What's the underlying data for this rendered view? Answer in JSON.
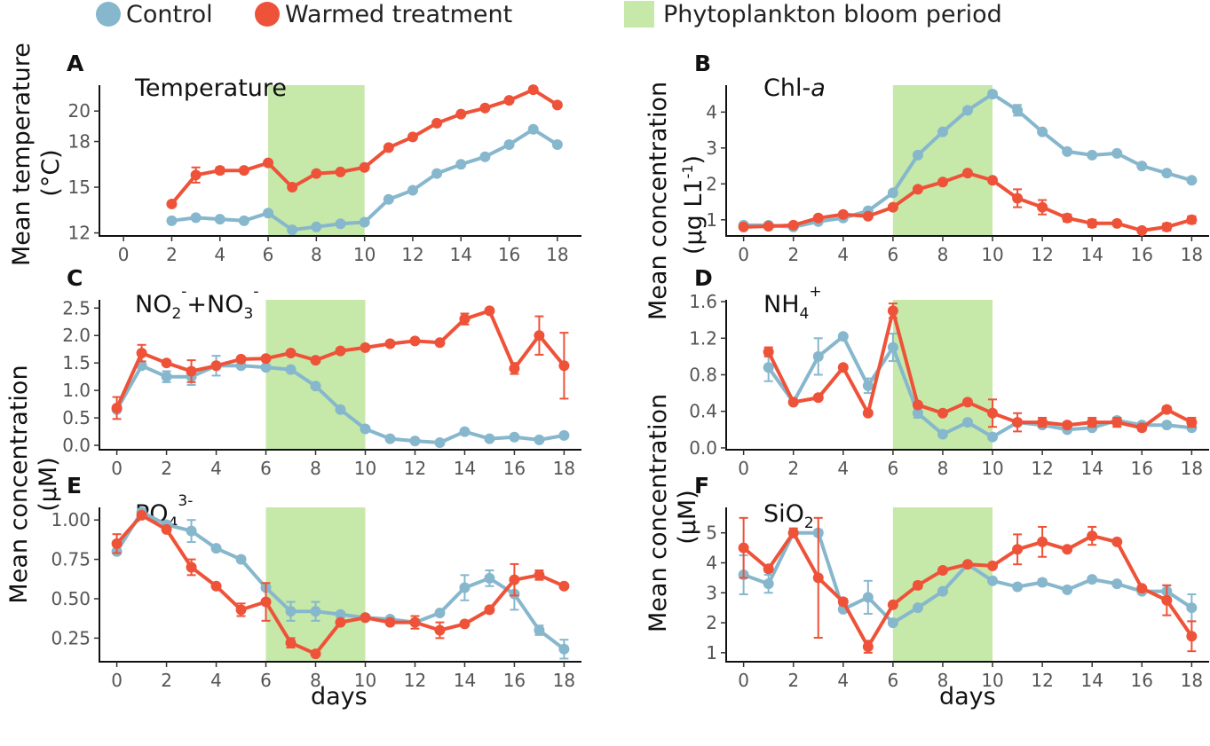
{
  "legend": {
    "control_label": "Control",
    "warmed_label": "Warmed treatment",
    "bloom_label": "Phytoplankton bloom period"
  },
  "colors": {
    "control": "#86b7cd",
    "warmed": "#ee5238",
    "bloom": "#c6e8a9"
  },
  "y_labels": {
    "temperature_line1": "Mean temperature",
    "temperature_line2": "(°C)",
    "left_conc_line1": "Mean concentration",
    "left_conc_line2": "(µM)",
    "right_chl_line1": "Mean concentration",
    "right_chl_line2": "(µg L1",
    "right_chl_sup": "-1",
    "right_chl_close": ")",
    "right_conc_line1": "Mean concentration",
    "right_conc_line2": "(µM)"
  },
  "x_label": "days",
  "chart_data": [
    {
      "id": "A",
      "letter": "A",
      "title": "Temperature",
      "type": "line",
      "bloom": [
        6,
        10
      ],
      "xlim": [
        -1,
        19
      ],
      "ylim": [
        11.8,
        21.7
      ],
      "xticks": [
        0,
        2,
        4,
        6,
        8,
        10,
        12,
        14,
        16,
        18
      ],
      "yticks": [
        12,
        15,
        18,
        20
      ],
      "series": [
        {
          "name": "Control",
          "x": [
            2,
            3,
            4,
            5,
            6,
            7,
            8,
            9,
            10,
            11,
            12,
            13,
            14,
            15,
            16,
            17,
            18
          ],
          "values": [
            12.8,
            13.0,
            12.9,
            12.8,
            13.3,
            12.2,
            12.4,
            12.6,
            12.7,
            14.2,
            14.8,
            15.9,
            16.5,
            17.0,
            17.8,
            18.8,
            17.8
          ],
          "errors": [
            0,
            0,
            0,
            0,
            0,
            0,
            0,
            0,
            0,
            0,
            0,
            0,
            0,
            0,
            0,
            0,
            0
          ]
        },
        {
          "name": "Warmed treatment",
          "x": [
            2,
            3,
            4,
            5,
            6,
            7,
            8,
            9,
            10,
            11,
            12,
            13,
            14,
            15,
            16,
            17,
            18
          ],
          "values": [
            13.9,
            15.8,
            16.1,
            16.1,
            16.6,
            15.0,
            15.9,
            16.0,
            16.3,
            17.6,
            18.3,
            19.2,
            19.8,
            20.2,
            20.7,
            21.4,
            20.4
          ],
          "errors": [
            0,
            0.5,
            0.2,
            0,
            0,
            0,
            0,
            0,
            0,
            0,
            0,
            0,
            0,
            0,
            0,
            0,
            0
          ]
        }
      ]
    },
    {
      "id": "B",
      "letter": "B",
      "title": "Chl-",
      "title_italic": "a",
      "type": "line",
      "bloom": [
        6,
        10
      ],
      "xlim": [
        -0.7,
        18.7
      ],
      "ylim": [
        0.55,
        4.75
      ],
      "xticks": [
        0,
        2,
        4,
        6,
        8,
        10,
        12,
        14,
        16,
        18
      ],
      "yticks": [
        1,
        2,
        3,
        4
      ],
      "series": [
        {
          "name": "Control",
          "x": [
            0,
            1,
            2,
            3,
            4,
            5,
            6,
            7,
            8,
            9,
            10,
            11,
            12,
            13,
            14,
            15,
            16,
            17,
            18
          ],
          "values": [
            0.85,
            0.85,
            0.8,
            0.95,
            1.05,
            1.25,
            1.75,
            2.8,
            3.45,
            4.05,
            4.5,
            4.05,
            3.45,
            2.9,
            2.8,
            2.85,
            2.5,
            2.3,
            2.1
          ],
          "errors": [
            0,
            0,
            0,
            0,
            0,
            0,
            0,
            0,
            0,
            0,
            0.08,
            0.15,
            0,
            0,
            0,
            0,
            0,
            0,
            0
          ]
        },
        {
          "name": "Warmed treatment",
          "x": [
            0,
            1,
            2,
            3,
            4,
            5,
            6,
            7,
            8,
            9,
            10,
            11,
            12,
            13,
            14,
            15,
            16,
            17,
            18
          ],
          "values": [
            0.8,
            0.82,
            0.85,
            1.05,
            1.15,
            1.1,
            1.35,
            1.85,
            2.05,
            2.3,
            2.1,
            1.6,
            1.35,
            1.05,
            0.9,
            0.9,
            0.7,
            0.8,
            1.0
          ],
          "errors": [
            0,
            0,
            0,
            0,
            0,
            0,
            0,
            0,
            0,
            0,
            0,
            0.25,
            0.2,
            0.1,
            0.1,
            0,
            0.05,
            0.1,
            0.1
          ]
        }
      ]
    },
    {
      "id": "C",
      "letter": "C",
      "title": "NO",
      "title_parts": [
        [
          "NO",
          ""
        ],
        [
          "2",
          "sub"
        ],
        [
          "-",
          "sup"
        ],
        [
          "+NO",
          ""
        ],
        [
          "3",
          "sub"
        ],
        [
          "-",
          "sup"
        ]
      ],
      "type": "line",
      "bloom": [
        6,
        10
      ],
      "xlim": [
        -0.7,
        18.7
      ],
      "ylim": [
        -0.08,
        2.65
      ],
      "xticks": [
        0,
        2,
        4,
        6,
        8,
        10,
        12,
        14,
        16,
        18
      ],
      "yticks": [
        0.0,
        0.5,
        1.0,
        1.5,
        2.0,
        2.5
      ],
      "series": [
        {
          "name": "Control",
          "x": [
            0,
            1,
            2,
            3,
            4,
            5,
            6,
            7,
            8,
            9,
            10,
            11,
            12,
            13,
            14,
            15,
            16,
            17,
            18
          ],
          "values": [
            0.65,
            1.45,
            1.25,
            1.25,
            1.45,
            1.45,
            1.42,
            1.38,
            1.08,
            0.65,
            0.3,
            0.12,
            0.08,
            0.05,
            0.25,
            0.12,
            0.15,
            0.1,
            0.18
          ],
          "errors": [
            0,
            0,
            0.1,
            0.15,
            0.18,
            0,
            0,
            0,
            0,
            0,
            0,
            0,
            0,
            0,
            0,
            0,
            0,
            0,
            0
          ]
        },
        {
          "name": "Warmed treatment",
          "x": [
            0,
            1,
            2,
            3,
            4,
            5,
            6,
            7,
            8,
            9,
            10,
            11,
            12,
            13,
            14,
            15,
            16,
            17,
            18
          ],
          "values": [
            0.68,
            1.68,
            1.5,
            1.35,
            1.45,
            1.57,
            1.58,
            1.68,
            1.55,
            1.72,
            1.78,
            1.85,
            1.9,
            1.87,
            2.3,
            2.45,
            1.4,
            2.0,
            1.45
          ],
          "errors": [
            0.2,
            0.15,
            0,
            0.2,
            0,
            0,
            0,
            0,
            0,
            0,
            0,
            0,
            0,
            0,
            0.1,
            0,
            0.1,
            0.35,
            0.6
          ]
        }
      ]
    },
    {
      "id": "D",
      "letter": "D",
      "title": "NH",
      "title_parts": [
        [
          "NH",
          ""
        ],
        [
          "4",
          "sub"
        ],
        [
          "+",
          "sup"
        ]
      ],
      "type": "line",
      "bloom": [
        6,
        10
      ],
      "xlim": [
        -0.7,
        18.7
      ],
      "ylim": [
        -0.02,
        1.62
      ],
      "xticks": [
        0,
        2,
        4,
        6,
        8,
        10,
        12,
        14,
        16,
        18
      ],
      "yticks": [
        0.0,
        0.4,
        0.8,
        1.2,
        1.6
      ],
      "series": [
        {
          "name": "Control",
          "x": [
            1,
            2,
            3,
            4,
            5,
            6,
            7,
            8,
            9,
            10,
            11,
            12,
            13,
            14,
            15,
            16,
            17,
            18
          ],
          "values": [
            0.88,
            0.5,
            1.0,
            1.22,
            0.68,
            1.1,
            0.38,
            0.15,
            0.28,
            0.12,
            0.28,
            0.25,
            0.2,
            0.22,
            0.3,
            0.25,
            0.25,
            0.22
          ],
          "errors": [
            0.15,
            0,
            0.2,
            0,
            0.08,
            0.15,
            0.05,
            0,
            0,
            0,
            0,
            0,
            0,
            0,
            0,
            0,
            0,
            0
          ]
        },
        {
          "name": "Warmed treatment",
          "x": [
            1,
            2,
            3,
            4,
            5,
            6,
            7,
            8,
            9,
            10,
            11,
            12,
            13,
            14,
            15,
            16,
            17,
            18
          ],
          "values": [
            1.05,
            0.5,
            0.55,
            0.88,
            0.38,
            1.5,
            0.47,
            0.38,
            0.5,
            0.38,
            0.28,
            0.28,
            0.25,
            0.28,
            0.28,
            0.22,
            0.42,
            0.28
          ],
          "errors": [
            0.05,
            0,
            0,
            0,
            0,
            0.08,
            0,
            0,
            0,
            0.15,
            0.1,
            0.05,
            0.03,
            0.05,
            0.05,
            0.03,
            0.03,
            0.05
          ]
        }
      ]
    },
    {
      "id": "E",
      "letter": "E",
      "title": "PO",
      "title_parts": [
        [
          "PO",
          ""
        ],
        [
          "4",
          "sub"
        ],
        [
          "3-",
          "sup"
        ]
      ],
      "type": "line",
      "bloom": [
        6,
        10
      ],
      "xlim": [
        -0.7,
        18.7
      ],
      "ylim": [
        0.1,
        1.08
      ],
      "xticks": [
        0,
        2,
        4,
        6,
        8,
        10,
        12,
        14,
        16,
        18
      ],
      "yticks": [
        0.25,
        0.5,
        0.75,
        1.0
      ],
      "series": [
        {
          "name": "Control",
          "x": [
            0,
            1,
            2,
            3,
            4,
            5,
            6,
            7,
            8,
            9,
            10,
            11,
            12,
            13,
            14,
            15,
            16,
            17,
            18
          ],
          "values": [
            0.8,
            1.05,
            0.97,
            0.93,
            0.82,
            0.75,
            0.57,
            0.42,
            0.42,
            0.4,
            0.38,
            0.37,
            0.35,
            0.41,
            0.57,
            0.63,
            0.53,
            0.3,
            0.18
          ],
          "errors": [
            0,
            0,
            0,
            0.07,
            0,
            0,
            0,
            0.06,
            0.06,
            0,
            0,
            0,
            0,
            0,
            0.08,
            0.05,
            0.1,
            0.03,
            0.06
          ]
        },
        {
          "name": "Warmed treatment",
          "x": [
            0,
            1,
            2,
            3,
            4,
            5,
            6,
            7,
            8,
            9,
            10,
            11,
            12,
            13,
            14,
            15,
            16,
            17,
            18
          ],
          "values": [
            0.85,
            1.03,
            0.94,
            0.7,
            0.58,
            0.43,
            0.48,
            0.22,
            0.15,
            0.35,
            0.38,
            0.35,
            0.35,
            0.3,
            0.34,
            0.43,
            0.62,
            0.65,
            0.58
          ],
          "errors": [
            0.06,
            0,
            0,
            0.05,
            0,
            0.04,
            0.12,
            0.03,
            0,
            0,
            0,
            0,
            0.04,
            0.05,
            0,
            0,
            0.1,
            0.03,
            0
          ]
        }
      ]
    },
    {
      "id": "F",
      "letter": "F",
      "title": "SiO",
      "title_parts": [
        [
          "SiO",
          ""
        ],
        [
          "2",
          "sub"
        ]
      ],
      "type": "line",
      "bloom": [
        6,
        10
      ],
      "xlim": [
        -0.7,
        18.7
      ],
      "ylim": [
        0.7,
        5.85
      ],
      "xticks": [
        0,
        2,
        4,
        6,
        8,
        10,
        12,
        14,
        16,
        18
      ],
      "yticks": [
        1,
        2,
        3,
        4,
        5
      ],
      "series": [
        {
          "name": "Control",
          "x": [
            0,
            1,
            2,
            3,
            4,
            5,
            6,
            7,
            8,
            9,
            10,
            11,
            12,
            13,
            14,
            15,
            16,
            17,
            18
          ],
          "values": [
            3.6,
            3.3,
            5.0,
            5.0,
            2.45,
            2.85,
            2.0,
            2.5,
            3.05,
            3.95,
            3.4,
            3.2,
            3.35,
            3.1,
            3.45,
            3.3,
            3.05,
            3.05,
            2.5
          ],
          "errors": [
            0.65,
            0.3,
            0,
            0.1,
            0,
            0.55,
            0,
            0,
            0,
            0,
            0,
            0,
            0.1,
            0,
            0,
            0,
            0,
            0.2,
            0.45
          ]
        },
        {
          "name": "Warmed treatment",
          "x": [
            0,
            1,
            2,
            3,
            4,
            5,
            6,
            7,
            8,
            9,
            10,
            11,
            12,
            13,
            14,
            15,
            16,
            17,
            18
          ],
          "values": [
            4.5,
            3.8,
            5.0,
            3.5,
            2.7,
            1.2,
            2.6,
            3.25,
            3.75,
            3.95,
            3.9,
            4.45,
            4.7,
            4.45,
            4.9,
            4.7,
            3.15,
            2.75,
            1.55
          ],
          "errors": [
            1.0,
            0.1,
            0.15,
            2.0,
            0.1,
            0.2,
            0,
            0.1,
            0,
            0,
            0,
            0.5,
            0.5,
            0,
            0.3,
            0,
            0,
            0.5,
            0.5
          ]
        }
      ]
    }
  ]
}
